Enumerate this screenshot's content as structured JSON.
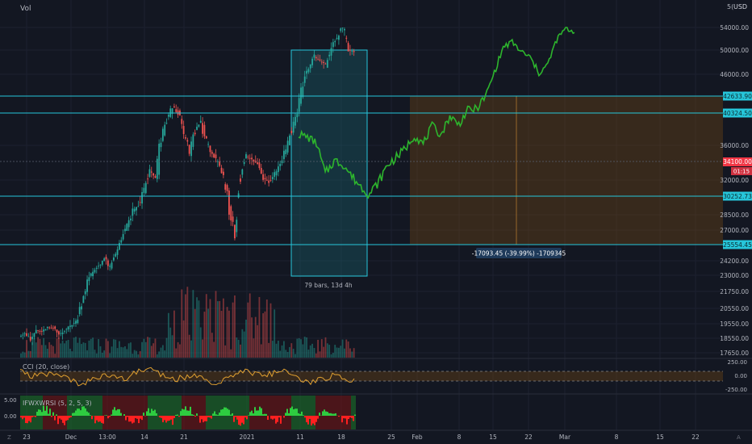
{
  "header": {
    "vol_label": "Vol",
    "currency": "USD",
    "currency_prefix": "5("
  },
  "colors": {
    "bg": "#131722",
    "grid": "#1c2030",
    "axis_text": "#b2b5be",
    "level_line": "#26c6da",
    "up": "#26a69a",
    "down": "#ef5350",
    "projection": "#2db52d",
    "box_fill": "#7a4a12",
    "time_range_fill": "#1d6f78",
    "cci_line": "#e0a030",
    "current_price": "#f23645"
  },
  "price_axis": {
    "ticks": [
      "54000.00",
      "50000.00",
      "46000.00",
      "36000.00",
      "32000.00",
      "28500.00",
      "27000.00",
      "24200.00",
      "23000.00",
      "21750.00",
      "20550.00",
      "19550.00",
      "18550.00",
      "17650.00"
    ],
    "levels": [
      {
        "label": "42633.90",
        "value": 42633.9
      },
      {
        "label": "40324.50",
        "value": 40324.5
      },
      {
        "label": "30252.73",
        "value": 30252.73
      },
      {
        "label": "25554.45",
        "value": 25554.45
      }
    ],
    "current": {
      "label": "34100.00",
      "timer": "01:15",
      "value": 34100
    }
  },
  "time_axis": {
    "ticks": [
      "23",
      "Dec",
      "13:00",
      "14",
      "21",
      "2021",
      "11",
      "18",
      "25",
      "Feb",
      "8",
      "15",
      "22",
      "Mar",
      "8",
      "15",
      "22"
    ],
    "corner_left": "Z",
    "corner_right": "A"
  },
  "annotations": {
    "bars_range": "79 bars, 13d 4h",
    "measure": "-17093.45 (-39.99%) -1709345"
  },
  "cci_panel": {
    "title": "CCI (20, close)",
    "ticks": [
      "250.00",
      "0.00",
      "-250.00"
    ]
  },
  "ifwx_panel": {
    "title": "IFWXWRSI (5, 2, 5, 3)",
    "ticks": [
      "5.00",
      "0.00"
    ]
  },
  "chart_data": [
    {
      "type": "line",
      "title": "",
      "ylabel": "USD",
      "series": [
        {
          "values": [
            18700,
            18900,
            18400,
            19100,
            19000,
            19300,
            19250,
            18800,
            19100,
            19400,
            19700,
            21000,
            22500,
            23300,
            23800,
            24400,
            23600,
            24700,
            26300,
            27400,
            28800,
            29300,
            31000,
            33000,
            32200,
            36800,
            39400,
            41200,
            40300,
            37500,
            35200,
            38000,
            39200,
            36300,
            35100,
            33800,
            32200,
            29200,
            26400,
            33000,
            34700,
            34300,
            33800,
            32300,
            31800,
            32800,
            33900,
            35700,
            38200,
            40500,
            44800,
            47200,
            48900,
            48200,
            47600,
            50500,
            52200,
            54300,
            50000,
            49700
          ]
        },
        {
          "values": [
            37500,
            37100,
            36300,
            32700,
            34200,
            33800,
            32400,
            31300,
            30500,
            31800,
            33700,
            34600,
            35600,
            37300,
            36200,
            38600,
            37400,
            39900,
            38800,
            40700,
            40900,
            42600,
            46300,
            50500,
            51400,
            49700,
            48800,
            46200,
            47600,
            51800,
            53900,
            53100
          ]
        }
      ],
      "levels": [
        42633.9,
        40324.5,
        34100,
        30252.73,
        25554.45
      ]
    },
    {
      "type": "line",
      "title": "CCI (20, close)",
      "yticks": [
        250,
        0,
        -250
      ]
    },
    {
      "type": "bar",
      "title": "IFWXWRSI (5, 2, 5, 3)",
      "yticks": [
        5,
        0
      ]
    }
  ]
}
